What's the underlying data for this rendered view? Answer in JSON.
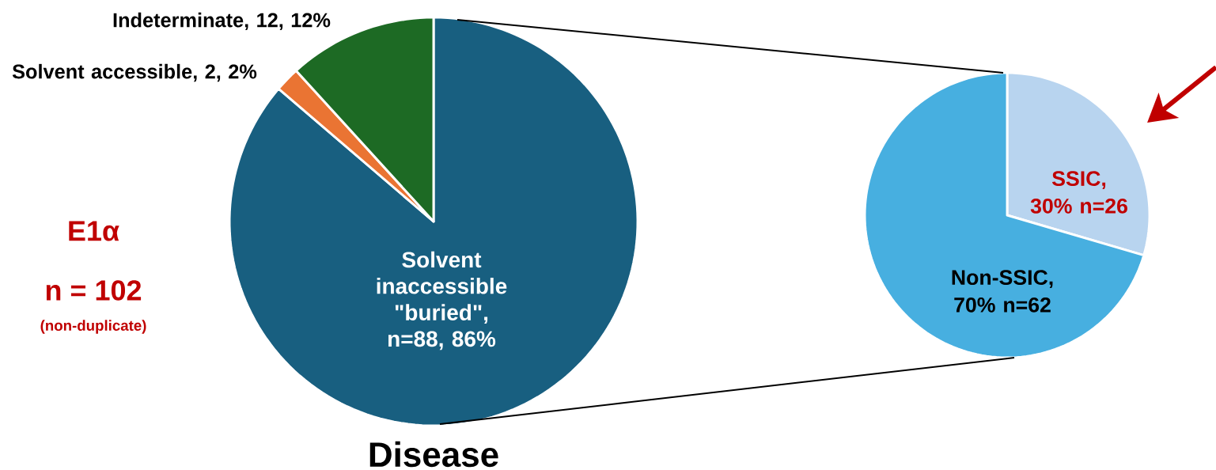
{
  "chart_data": [
    {
      "type": "pie",
      "categories": [
        "Solvent inaccessible \"buried\", n=88, 86%",
        "Solvent accessible, 2, 2%",
        "Indeterminate, 12, 12%"
      ],
      "values": [
        88,
        2,
        12
      ],
      "colors": [
        "#185f80",
        "#ea7433",
        "#1d6a24"
      ],
      "xlabel": "Disease",
      "annotations": [
        "E1α",
        "n = 102",
        "(non-duplicate)"
      ]
    },
    {
      "type": "pie",
      "categories": [
        "SSIC, 30% n=26",
        "Non-SSIC, 70% n=62"
      ],
      "values": [
        26,
        62
      ],
      "colors": [
        "#b8d4ef",
        "#47afe0"
      ]
    }
  ]
}
